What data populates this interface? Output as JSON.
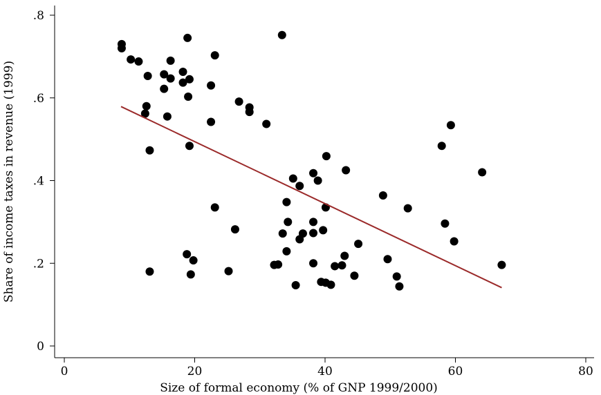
{
  "chart_data": {
    "type": "scatter",
    "xlabel": "Size of formal economy (% of GNP 1999/2000)",
    "ylabel": "Share of income taxes in revenue (1999)",
    "xlim": [
      0,
      80
    ],
    "ylim": [
      0,
      0.8
    ],
    "x_ticks": [
      0,
      20,
      40,
      60,
      80
    ],
    "x_tick_labels": [
      "0",
      "20",
      "40",
      "60",
      "80"
    ],
    "y_ticks": [
      0,
      0.2,
      0.4,
      0.6,
      0.8
    ],
    "y_tick_labels": [
      "0",
      ".2",
      ".4",
      ".6",
      ".8"
    ],
    "grid": false,
    "colors": {
      "points": "#000000",
      "fit_line": "#9b2a2a"
    },
    "points": [
      {
        "x": 8.8,
        "y": 0.73
      },
      {
        "x": 8.8,
        "y": 0.72
      },
      {
        "x": 10.2,
        "y": 0.693
      },
      {
        "x": 11.4,
        "y": 0.688
      },
      {
        "x": 12.8,
        "y": 0.653
      },
      {
        "x": 12.6,
        "y": 0.58
      },
      {
        "x": 12.4,
        "y": 0.562
      },
      {
        "x": 13.1,
        "y": 0.473
      },
      {
        "x": 13.1,
        "y": 0.18
      },
      {
        "x": 15.3,
        "y": 0.657
      },
      {
        "x": 15.3,
        "y": 0.622
      },
      {
        "x": 15.8,
        "y": 0.555
      },
      {
        "x": 16.3,
        "y": 0.69
      },
      {
        "x": 16.3,
        "y": 0.647
      },
      {
        "x": 18.2,
        "y": 0.663
      },
      {
        "x": 18.2,
        "y": 0.637
      },
      {
        "x": 18.9,
        "y": 0.745
      },
      {
        "x": 19.2,
        "y": 0.645
      },
      {
        "x": 19.0,
        "y": 0.603
      },
      {
        "x": 19.2,
        "y": 0.484
      },
      {
        "x": 18.8,
        "y": 0.222
      },
      {
        "x": 19.4,
        "y": 0.173
      },
      {
        "x": 19.8,
        "y": 0.207
      },
      {
        "x": 22.5,
        "y": 0.63
      },
      {
        "x": 22.5,
        "y": 0.542
      },
      {
        "x": 23.1,
        "y": 0.703
      },
      {
        "x": 23.1,
        "y": 0.335
      },
      {
        "x": 25.2,
        "y": 0.181
      },
      {
        "x": 26.2,
        "y": 0.282
      },
      {
        "x": 26.8,
        "y": 0.591
      },
      {
        "x": 28.4,
        "y": 0.577
      },
      {
        "x": 28.4,
        "y": 0.566
      },
      {
        "x": 31.0,
        "y": 0.537
      },
      {
        "x": 32.2,
        "y": 0.196
      },
      {
        "x": 32.8,
        "y": 0.197
      },
      {
        "x": 33.4,
        "y": 0.752
      },
      {
        "x": 33.5,
        "y": 0.272
      },
      {
        "x": 34.1,
        "y": 0.348
      },
      {
        "x": 34.1,
        "y": 0.229
      },
      {
        "x": 34.3,
        "y": 0.3
      },
      {
        "x": 35.1,
        "y": 0.405
      },
      {
        "x": 35.5,
        "y": 0.147
      },
      {
        "x": 36.1,
        "y": 0.387
      },
      {
        "x": 36.1,
        "y": 0.258
      },
      {
        "x": 36.6,
        "y": 0.272
      },
      {
        "x": 38.2,
        "y": 0.418
      },
      {
        "x": 38.2,
        "y": 0.3
      },
      {
        "x": 38.2,
        "y": 0.273
      },
      {
        "x": 38.2,
        "y": 0.2
      },
      {
        "x": 38.9,
        "y": 0.4
      },
      {
        "x": 39.4,
        "y": 0.155
      },
      {
        "x": 39.7,
        "y": 0.28
      },
      {
        "x": 40.1,
        "y": 0.335
      },
      {
        "x": 40.1,
        "y": 0.153
      },
      {
        "x": 40.2,
        "y": 0.459
      },
      {
        "x": 40.9,
        "y": 0.148
      },
      {
        "x": 41.5,
        "y": 0.193
      },
      {
        "x": 42.6,
        "y": 0.195
      },
      {
        "x": 43.0,
        "y": 0.218
      },
      {
        "x": 43.2,
        "y": 0.425
      },
      {
        "x": 44.5,
        "y": 0.17
      },
      {
        "x": 45.1,
        "y": 0.247
      },
      {
        "x": 48.9,
        "y": 0.364
      },
      {
        "x": 49.6,
        "y": 0.21
      },
      {
        "x": 51.0,
        "y": 0.168
      },
      {
        "x": 51.4,
        "y": 0.144
      },
      {
        "x": 52.7,
        "y": 0.333
      },
      {
        "x": 57.9,
        "y": 0.484
      },
      {
        "x": 58.4,
        "y": 0.296
      },
      {
        "x": 59.3,
        "y": 0.534
      },
      {
        "x": 59.8,
        "y": 0.253
      },
      {
        "x": 64.1,
        "y": 0.42
      },
      {
        "x": 67.1,
        "y": 0.196
      }
    ],
    "fit_line": {
      "x": [
        8.7,
        67.1
      ],
      "y": [
        0.579,
        0.141
      ]
    }
  }
}
